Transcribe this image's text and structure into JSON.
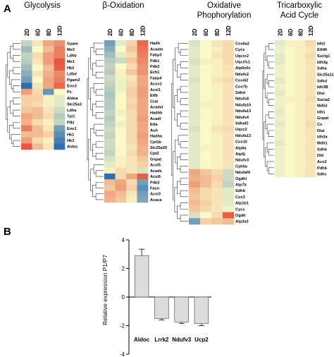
{
  "figure": {
    "panel_a": "A",
    "panel_b": "B"
  },
  "chart_data": [
    {
      "type": "heatmap",
      "title": "Glycolysis",
      "columns": [
        "2D",
        "6D",
        "8D",
        "12D"
      ],
      "rows": [
        "Gpam",
        "Me3",
        "Ldhb",
        "Me1",
        "Hk2",
        "Ldhd",
        "Pgam2",
        "Eno3",
        "Pc",
        "Aldoa",
        "Slc25a3",
        "Ldha",
        "Tpi1",
        "Pfkl",
        "Eno1",
        "Hk1",
        "Hk3",
        "Aldoc"
      ],
      "values": [
        [
          -0.5,
          0.2,
          0.8,
          1.0
        ],
        [
          -0.8,
          0.0,
          0.6,
          1.2
        ],
        [
          -0.5,
          0.3,
          0.9,
          1.2
        ],
        [
          -0.6,
          0.2,
          0.9,
          1.6
        ],
        [
          -0.8,
          0.0,
          0.6,
          1.5
        ],
        [
          -1.0,
          0.2,
          0.7,
          1.1
        ],
        [
          -1.2,
          0.0,
          0.8,
          1.2
        ],
        [
          -2.0,
          0.2,
          0.8,
          1.4
        ],
        [
          0.9,
          0.3,
          -1.3,
          0.0
        ],
        [
          0.4,
          0.4,
          0.1,
          -0.2
        ],
        [
          0.4,
          0.3,
          -0.1,
          -0.2
        ],
        [
          0.5,
          0.6,
          0.2,
          -0.4
        ],
        [
          0.8,
          0.6,
          0.3,
          -0.6
        ],
        [
          0.7,
          0.3,
          0.1,
          -0.5
        ],
        [
          1.2,
          0.6,
          0.2,
          -1.2
        ],
        [
          0.6,
          0.6,
          0.4,
          -1.4
        ],
        [
          0.9,
          0.3,
          0.1,
          -1.6
        ],
        [
          1.6,
          0.6,
          0.2,
          -2.0
        ]
      ],
      "color_scale": {
        "low": "#2f6fb0",
        "mid": "#fafac8",
        "high": "#e2412b"
      }
    },
    {
      "type": "heatmap",
      "title": "β-Oxidation",
      "columns": [
        "2D",
        "6D",
        "8D",
        "12D"
      ],
      "rows": [
        "Hadh",
        "Acadm",
        "Fabp3",
        "Pdk1",
        "Pdk2",
        "Ech1",
        "Fabp4",
        "Acox1",
        "Acsl1",
        "Etfb",
        "Crat",
        "Acadvl",
        "Hadhb",
        "Acadl",
        "Etfa",
        "Auh",
        "Hadha",
        "Cpt1b",
        "Slc25a20",
        "Cpt2",
        "Gnpat",
        "Acsl5",
        "Acads",
        "Acsl6",
        "Pdk3",
        "Fasn",
        "Acsl3",
        "Acaca"
      ],
      "values": [
        [
          -1.2,
          -0.2,
          0.4,
          1.4
        ],
        [
          -1.0,
          0.0,
          0.5,
          1.3
        ],
        [
          -0.8,
          -0.2,
          0.3,
          1.2
        ],
        [
          -0.6,
          -0.4,
          0.5,
          1.1
        ],
        [
          -0.5,
          0.0,
          0.3,
          1.0
        ],
        [
          -0.6,
          0.1,
          0.5,
          1.0
        ],
        [
          -0.4,
          -0.1,
          0.2,
          0.8
        ],
        [
          -0.5,
          -0.1,
          0.3,
          0.8
        ],
        [
          -0.6,
          -0.1,
          0.4,
          0.9
        ],
        [
          -0.7,
          0.0,
          0.4,
          0.9
        ],
        [
          -0.6,
          0.0,
          0.3,
          0.8
        ],
        [
          -0.6,
          0.0,
          0.4,
          0.8
        ],
        [
          -0.5,
          -0.1,
          0.3,
          0.8
        ],
        [
          -0.6,
          0.0,
          0.3,
          0.9
        ],
        [
          -0.5,
          -0.1,
          0.3,
          0.8
        ],
        [
          -0.4,
          0.0,
          0.3,
          0.8
        ],
        [
          -0.5,
          0.0,
          0.3,
          0.9
        ],
        [
          -0.4,
          0.0,
          0.3,
          0.8
        ],
        [
          -0.4,
          0.0,
          0.2,
          0.7
        ],
        [
          -0.5,
          0.0,
          0.3,
          0.7
        ],
        [
          -0.3,
          0.1,
          0.2,
          0.5
        ],
        [
          -0.2,
          0.1,
          0.2,
          0.4
        ],
        [
          0.1,
          0.3,
          0.2,
          -0.3
        ],
        [
          -2.0,
          0.3,
          0.8,
          1.5
        ],
        [
          0.6,
          0.8,
          0.3,
          -1.2
        ],
        [
          0.5,
          0.9,
          0.4,
          -1.4
        ],
        [
          0.8,
          0.6,
          0.2,
          -1.2
        ],
        [
          0.7,
          0.5,
          0.1,
          -1.1
        ]
      ],
      "color_scale": {
        "low": "#2f6fb0",
        "mid": "#fafac8",
        "high": "#e2412b"
      }
    },
    {
      "type": "heatmap",
      "title": "Oxidative Phophorylation",
      "columns": [
        "2D",
        "6D",
        "8D",
        "12D"
      ],
      "rows": [
        "Cox6a2",
        "Cycs",
        "Uqcrc2",
        "Uqcrfs1",
        "Atp6v0c",
        "Ndufs2",
        "Cox4i2",
        "Cox7b",
        "Sdhd",
        "Ndufs8",
        "Ndufa10",
        "Ndufa13",
        "Ndufs4",
        "Sdhaf2",
        "Uqcc2",
        "Ndufa13",
        "Cox10",
        "Atp6a",
        "Atp5j",
        "Ndufv3",
        "Cyb5a",
        "Ndufaf4",
        "Ogdhl",
        "Atp7b",
        "Sdhb",
        "Cox3",
        "Atp1b1",
        "Cycs",
        "Ogdh",
        "Atp2a3"
      ],
      "values": [
        [
          -0.3,
          0.0,
          0.2,
          0.3
        ],
        [
          -0.2,
          0.0,
          0.1,
          0.3
        ],
        [
          -0.2,
          0.0,
          0.2,
          0.3
        ],
        [
          -0.3,
          0.1,
          0.1,
          0.3
        ],
        [
          -0.2,
          0.0,
          0.1,
          0.2
        ],
        [
          -0.2,
          0.0,
          0.1,
          0.2
        ],
        [
          -0.3,
          0.0,
          0.2,
          0.3
        ],
        [
          -0.2,
          0.0,
          0.1,
          0.2
        ],
        [
          -0.2,
          0.0,
          0.1,
          0.2
        ],
        [
          -0.2,
          0.0,
          0.1,
          0.2
        ],
        [
          -0.2,
          0.1,
          0.1,
          0.2
        ],
        [
          -0.2,
          0.0,
          0.1,
          0.2
        ],
        [
          -0.2,
          0.0,
          0.1,
          0.2
        ],
        [
          -0.2,
          0.0,
          0.1,
          0.2
        ],
        [
          -0.3,
          0.0,
          0.2,
          0.3
        ],
        [
          -0.2,
          0.0,
          0.1,
          0.2
        ],
        [
          -0.2,
          0.0,
          0.1,
          0.2
        ],
        [
          -0.2,
          0.1,
          0.1,
          0.2
        ],
        [
          -0.2,
          0.0,
          0.1,
          0.2
        ],
        [
          -0.2,
          0.0,
          0.1,
          0.2
        ],
        [
          -0.2,
          0.0,
          0.1,
          0.2
        ],
        [
          0.8,
          0.5,
          0.3,
          -0.4
        ],
        [
          0.7,
          0.6,
          0.4,
          -0.4
        ],
        [
          0.9,
          0.6,
          0.3,
          -0.5
        ],
        [
          0.6,
          0.3,
          0.2,
          -0.2
        ],
        [
          0.5,
          0.3,
          0.2,
          -0.2
        ],
        [
          0.6,
          0.4,
          0.2,
          -0.2
        ],
        [
          0.5,
          0.3,
          0.2,
          -0.1
        ],
        [
          -0.3,
          0.0,
          0.3,
          1.5
        ],
        [
          -1.2,
          0.4,
          0.5,
          0.6
        ]
      ],
      "color_scale": {
        "low": "#2f6fb0",
        "mid": "#fafac8",
        "high": "#e2412b"
      }
    },
    {
      "type": "heatmap",
      "title": "Tricarboxylic Acid Cycle",
      "columns": [
        "2D",
        "6D",
        "8D",
        "12D"
      ],
      "rows": [
        "Idh2",
        "Etfdh",
        "Suclg1",
        "Idh3g",
        "Sdha",
        "Slc25a11",
        "Sdhd",
        "Idh3B",
        "Dlst",
        "Sucla2",
        "Mdh2",
        "Idh1",
        "Gnpat",
        "Cs",
        "Dlat",
        "Idh3a",
        "Mdh1",
        "Sdhb",
        "Dld",
        "Aco2",
        "Pdhb",
        "Sdhc"
      ],
      "values": [
        [
          -0.2,
          0.1,
          0.1,
          0.3
        ],
        [
          -0.1,
          0.0,
          0.1,
          0.2
        ],
        [
          -0.2,
          0.0,
          0.1,
          0.3
        ],
        [
          -0.2,
          0.0,
          0.1,
          0.2
        ],
        [
          -0.1,
          0.0,
          0.1,
          0.2
        ],
        [
          -0.1,
          0.0,
          0.1,
          0.2
        ],
        [
          -0.2,
          0.0,
          0.1,
          0.2
        ],
        [
          -0.1,
          0.0,
          0.1,
          0.2
        ],
        [
          -0.2,
          0.0,
          0.1,
          0.2
        ],
        [
          -0.1,
          0.1,
          0.1,
          0.3
        ],
        [
          -0.1,
          0.0,
          0.1,
          0.2
        ],
        [
          -0.2,
          0.0,
          0.1,
          0.2
        ],
        [
          -0.1,
          0.0,
          0.1,
          0.2
        ],
        [
          -0.2,
          0.0,
          0.1,
          0.3
        ],
        [
          -0.1,
          0.0,
          0.1,
          0.2
        ],
        [
          -0.1,
          0.0,
          0.1,
          0.2
        ],
        [
          -0.2,
          0.0,
          0.1,
          0.2
        ],
        [
          -0.1,
          0.0,
          0.1,
          0.2
        ],
        [
          -0.1,
          0.0,
          0.1,
          0.2
        ],
        [
          -0.1,
          0.0,
          0.1,
          0.2
        ],
        [
          -0.1,
          0.0,
          0.1,
          0.2
        ],
        [
          -0.1,
          0.0,
          0.1,
          0.2
        ]
      ],
      "color_scale": {
        "low": "#2f6fb0",
        "mid": "#fafac8",
        "high": "#e2412b"
      }
    },
    {
      "type": "bar",
      "categories": [
        "Aldoc",
        "Lrrk2",
        "Ndufv3",
        "Ucp2"
      ],
      "values": [
        2.9,
        -1.5,
        -1.75,
        -1.85
      ],
      "errors": [
        0.45,
        0.1,
        0.1,
        0.15
      ],
      "ylabel": "Relative expression P1/P7",
      "ylim": [
        -4,
        4
      ],
      "yticks": [
        "4",
        "2",
        "0",
        "-2",
        "-4"
      ],
      "bar_color": "#dcdcdc",
      "grid": false
    }
  ]
}
